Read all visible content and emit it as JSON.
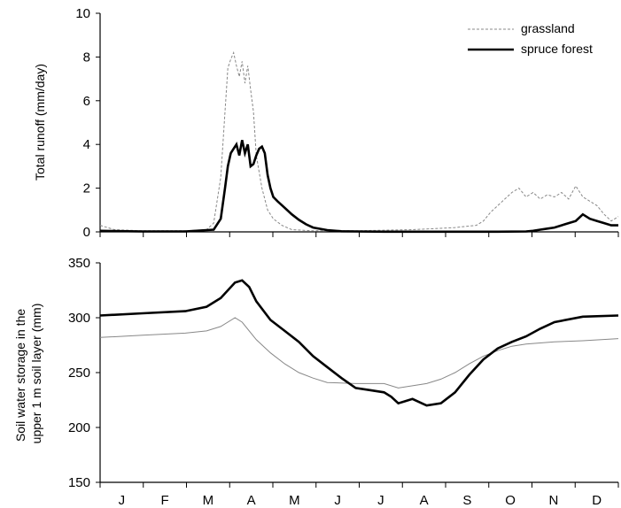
{
  "chart_data": [
    {
      "type": "line",
      "ylabel": "Total runoff (mm/day)",
      "ylim": [
        0,
        10
      ],
      "yticks": [
        0,
        2,
        4,
        6,
        8,
        10
      ],
      "xlim": [
        0,
        365
      ],
      "legend": "top-right",
      "series": [
        {
          "name": "grassland",
          "style": "thin dashed gray",
          "color": "#888888",
          "x": [
            0,
            10,
            30,
            60,
            75,
            80,
            85,
            88,
            90,
            92,
            94,
            96,
            98,
            100,
            102,
            104,
            106,
            108,
            110,
            114,
            118,
            122,
            128,
            135,
            150,
            180,
            220,
            250,
            265,
            270,
            275,
            280,
            285,
            290,
            295,
            300,
            305,
            310,
            315,
            320,
            325,
            330,
            335,
            340,
            345,
            350,
            355,
            360,
            365
          ],
          "y": [
            0.3,
            0.1,
            0.05,
            0.05,
            0.1,
            0.4,
            2.5,
            5.5,
            7.5,
            7.9,
            8.2,
            7.6,
            7.1,
            7.8,
            6.8,
            7.6,
            6.5,
            5.5,
            3.5,
            2.0,
            1.0,
            0.6,
            0.3,
            0.1,
            0.05,
            0.05,
            0.1,
            0.2,
            0.3,
            0.5,
            0.9,
            1.2,
            1.5,
            1.8,
            2.0,
            1.6,
            1.8,
            1.5,
            1.7,
            1.6,
            1.8,
            1.5,
            2.1,
            1.6,
            1.4,
            1.2,
            0.8,
            0.5,
            0.7
          ]
        },
        {
          "name": "spruce forest",
          "style": "thick solid black",
          "color": "#000000",
          "x": [
            0,
            30,
            60,
            80,
            85,
            88,
            90,
            92,
            94,
            96,
            98,
            100,
            102,
            104,
            106,
            108,
            110,
            112,
            114,
            116,
            118,
            120,
            122,
            125,
            130,
            135,
            140,
            145,
            150,
            160,
            170,
            180,
            200,
            220,
            240,
            260,
            280,
            300,
            305,
            310,
            315,
            320,
            325,
            330,
            335,
            340,
            345,
            350,
            355,
            360,
            365
          ],
          "y": [
            0.05,
            0.02,
            0.02,
            0.1,
            0.6,
            2.0,
            3.0,
            3.6,
            3.8,
            4.0,
            3.5,
            4.2,
            3.6,
            4.0,
            3.0,
            3.1,
            3.5,
            3.8,
            3.9,
            3.6,
            2.6,
            2.0,
            1.6,
            1.4,
            1.1,
            0.8,
            0.55,
            0.35,
            0.2,
            0.08,
            0.03,
            0.02,
            0.01,
            0.01,
            0.01,
            0.01,
            0.01,
            0.02,
            0.05,
            0.1,
            0.15,
            0.2,
            0.3,
            0.4,
            0.5,
            0.8,
            0.6,
            0.5,
            0.4,
            0.3,
            0.3
          ]
        }
      ]
    },
    {
      "type": "line",
      "ylabel": "Soil water storage in the upper 1 m soil layer (mm)",
      "ylabel_lines": [
        "Soil water storage in the",
        "upper 1 m soil layer (mm)"
      ],
      "ylim": [
        150,
        350
      ],
      "yticks": [
        150,
        200,
        250,
        300,
        350
      ],
      "xlim": [
        0,
        365
      ],
      "x_ticklabels": [
        "J",
        "F",
        "M",
        "A",
        "M",
        "J",
        "J",
        "A",
        "S",
        "O",
        "N",
        "D"
      ],
      "series": [
        {
          "name": "grassland",
          "style": "thin solid gray",
          "color": "#888888",
          "x": [
            0,
            30,
            60,
            75,
            85,
            95,
            100,
            110,
            120,
            130,
            140,
            150,
            160,
            180,
            200,
            210,
            220,
            230,
            240,
            250,
            260,
            270,
            280,
            290,
            300,
            320,
            340,
            365
          ],
          "y": [
            282,
            284,
            286,
            288,
            292,
            300,
            296,
            280,
            268,
            258,
            250,
            245,
            241,
            240,
            240,
            236,
            238,
            240,
            244,
            250,
            258,
            265,
            270,
            274,
            276,
            278,
            279,
            281
          ]
        },
        {
          "name": "spruce forest",
          "style": "thick solid black",
          "color": "#000000",
          "x": [
            0,
            30,
            60,
            75,
            85,
            95,
            100,
            105,
            110,
            120,
            130,
            140,
            150,
            160,
            170,
            180,
            190,
            200,
            205,
            210,
            215,
            220,
            230,
            240,
            250,
            260,
            270,
            280,
            290,
            300,
            310,
            320,
            340,
            365
          ],
          "y": [
            302,
            304,
            306,
            310,
            318,
            332,
            334,
            328,
            315,
            298,
            288,
            278,
            265,
            255,
            245,
            236,
            234,
            232,
            228,
            222,
            224,
            226,
            220,
            222,
            232,
            248,
            262,
            272,
            278,
            283,
            290,
            296,
            301,
            302
          ]
        }
      ]
    }
  ]
}
